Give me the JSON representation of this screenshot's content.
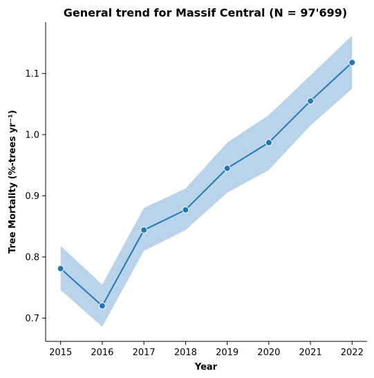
{
  "chart_data": {
    "type": "line",
    "title": "General trend for Massif Central  (N = 97'699)",
    "xlabel": "Year",
    "ylabel": "Tree Mortality (%-trees yr⁻¹)",
    "x": [
      2015,
      2016,
      2017,
      2018,
      2019,
      2020,
      2021,
      2022
    ],
    "series": [
      {
        "values": [
          0.781,
          0.72,
          0.844,
          0.877,
          0.945,
          0.987,
          1.055,
          1.118
        ],
        "lower": [
          0.746,
          0.686,
          0.81,
          0.844,
          0.905,
          0.942,
          1.015,
          1.075
        ],
        "upper": [
          0.818,
          0.755,
          0.88,
          0.912,
          0.987,
          1.032,
          1.097,
          1.162
        ]
      }
    ],
    "xlim": [
      2014.64,
      2022.36
    ],
    "ylim": [
      0.662,
      1.184
    ],
    "yticks": [
      0.7,
      0.8,
      0.9,
      1.0,
      1.1
    ],
    "ytick_labels": [
      "0.7",
      "0.8",
      "0.9",
      "1.0",
      "1.1"
    ],
    "xticks": [
      2015,
      2016,
      2017,
      2018,
      2019,
      2020,
      2021,
      2022
    ],
    "xtick_labels": [
      "2015",
      "2016",
      "2017",
      "2018",
      "2019",
      "2020",
      "2021",
      "2022"
    ],
    "grid": false,
    "colors": {
      "line": "#1f77b4",
      "band": "#b9d4ea",
      "marker_edge": "#ffffff"
    }
  }
}
